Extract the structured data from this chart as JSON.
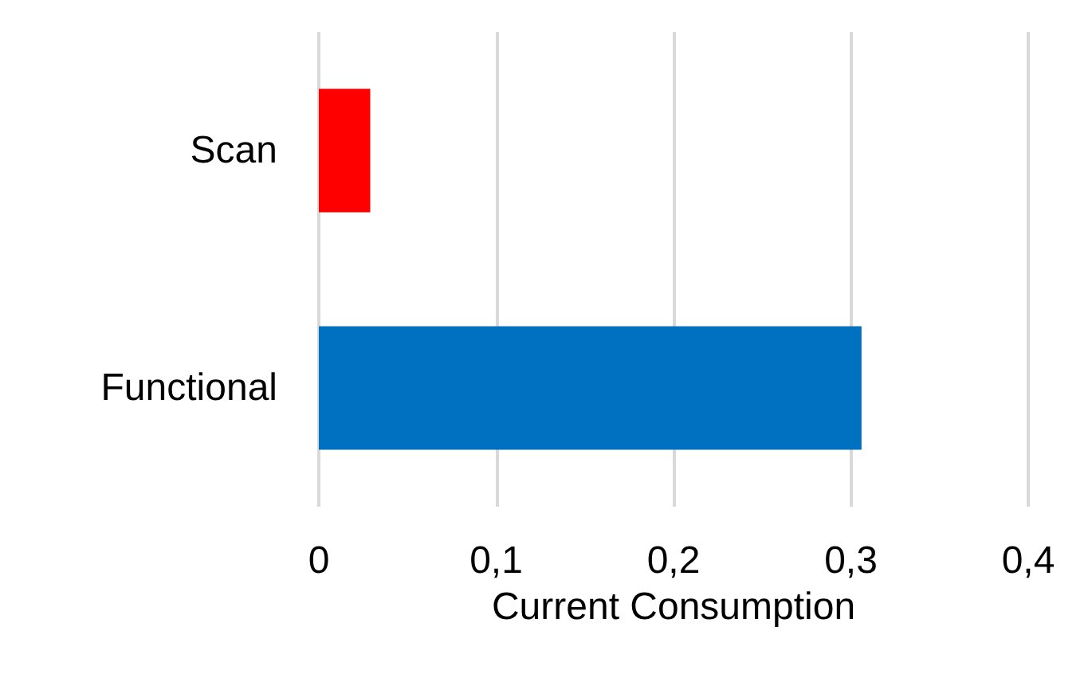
{
  "chart_data": {
    "type": "bar",
    "orientation": "horizontal",
    "xlabel": "Current Consumption",
    "categories": [
      "Scan",
      "Functional"
    ],
    "values": [
      0.029,
      0.306
    ],
    "colors": [
      "#ff0000",
      "#0070c0"
    ],
    "xlim": [
      0,
      0.4
    ],
    "xticks": [
      0,
      {
        "value": 0.1,
        "label": "0,1"
      },
      {
        "value": 0.2,
        "label": "0,2"
      },
      {
        "value": 0.3,
        "label": "0,3"
      },
      {
        "value": 0.4,
        "label": "0,4"
      }
    ],
    "grid": "x"
  }
}
